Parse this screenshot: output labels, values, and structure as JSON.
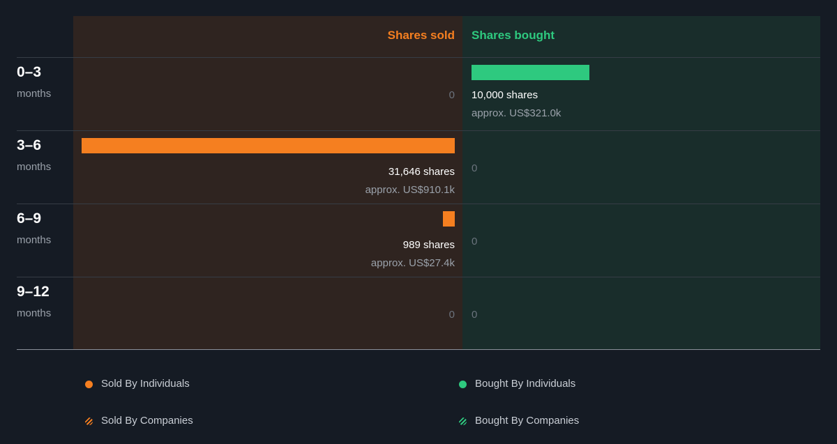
{
  "chart_data": {
    "type": "bar",
    "title": "",
    "column_headers": {
      "sold": "Shares sold",
      "bought": "Shares bought"
    },
    "periods": [
      {
        "label": "0–3",
        "unit": "months",
        "sold": {
          "shares": 0,
          "shares_text": "0",
          "approx_text": ""
        },
        "bought": {
          "shares": 10000,
          "shares_text": "10,000 shares",
          "approx_text": "approx. US$321.0k"
        }
      },
      {
        "label": "3–6",
        "unit": "months",
        "sold": {
          "shares": 31646,
          "shares_text": "31,646 shares",
          "approx_text": "approx. US$910.1k"
        },
        "bought": {
          "shares": 0,
          "shares_text": "0",
          "approx_text": ""
        }
      },
      {
        "label": "6–9",
        "unit": "months",
        "sold": {
          "shares": 989,
          "shares_text": "989 shares",
          "approx_text": "approx. US$27.4k"
        },
        "bought": {
          "shares": 0,
          "shares_text": "0",
          "approx_text": ""
        }
      },
      {
        "label": "9–12",
        "unit": "months",
        "sold": {
          "shares": 0,
          "shares_text": "0",
          "approx_text": ""
        },
        "bought": {
          "shares": 0,
          "shares_text": "0",
          "approx_text": ""
        }
      }
    ],
    "max_shares": 31646,
    "legend": [
      {
        "label": "Sold By Individuals",
        "marker": "dot",
        "color": "#f57f20"
      },
      {
        "label": "Bought By Individuals",
        "marker": "dot",
        "color": "#2ec97f"
      },
      {
        "label": "Sold By Companies",
        "marker": "hatch",
        "color": "#f57f20"
      },
      {
        "label": "Bought By Companies",
        "marker": "hatch",
        "color": "#2ec97f"
      }
    ],
    "colors": {
      "sold": "#f57f20",
      "bought": "#2ec97f",
      "sold_panel": "#2f2420",
      "bought_panel": "#192d2b",
      "background": "#151b24"
    }
  }
}
